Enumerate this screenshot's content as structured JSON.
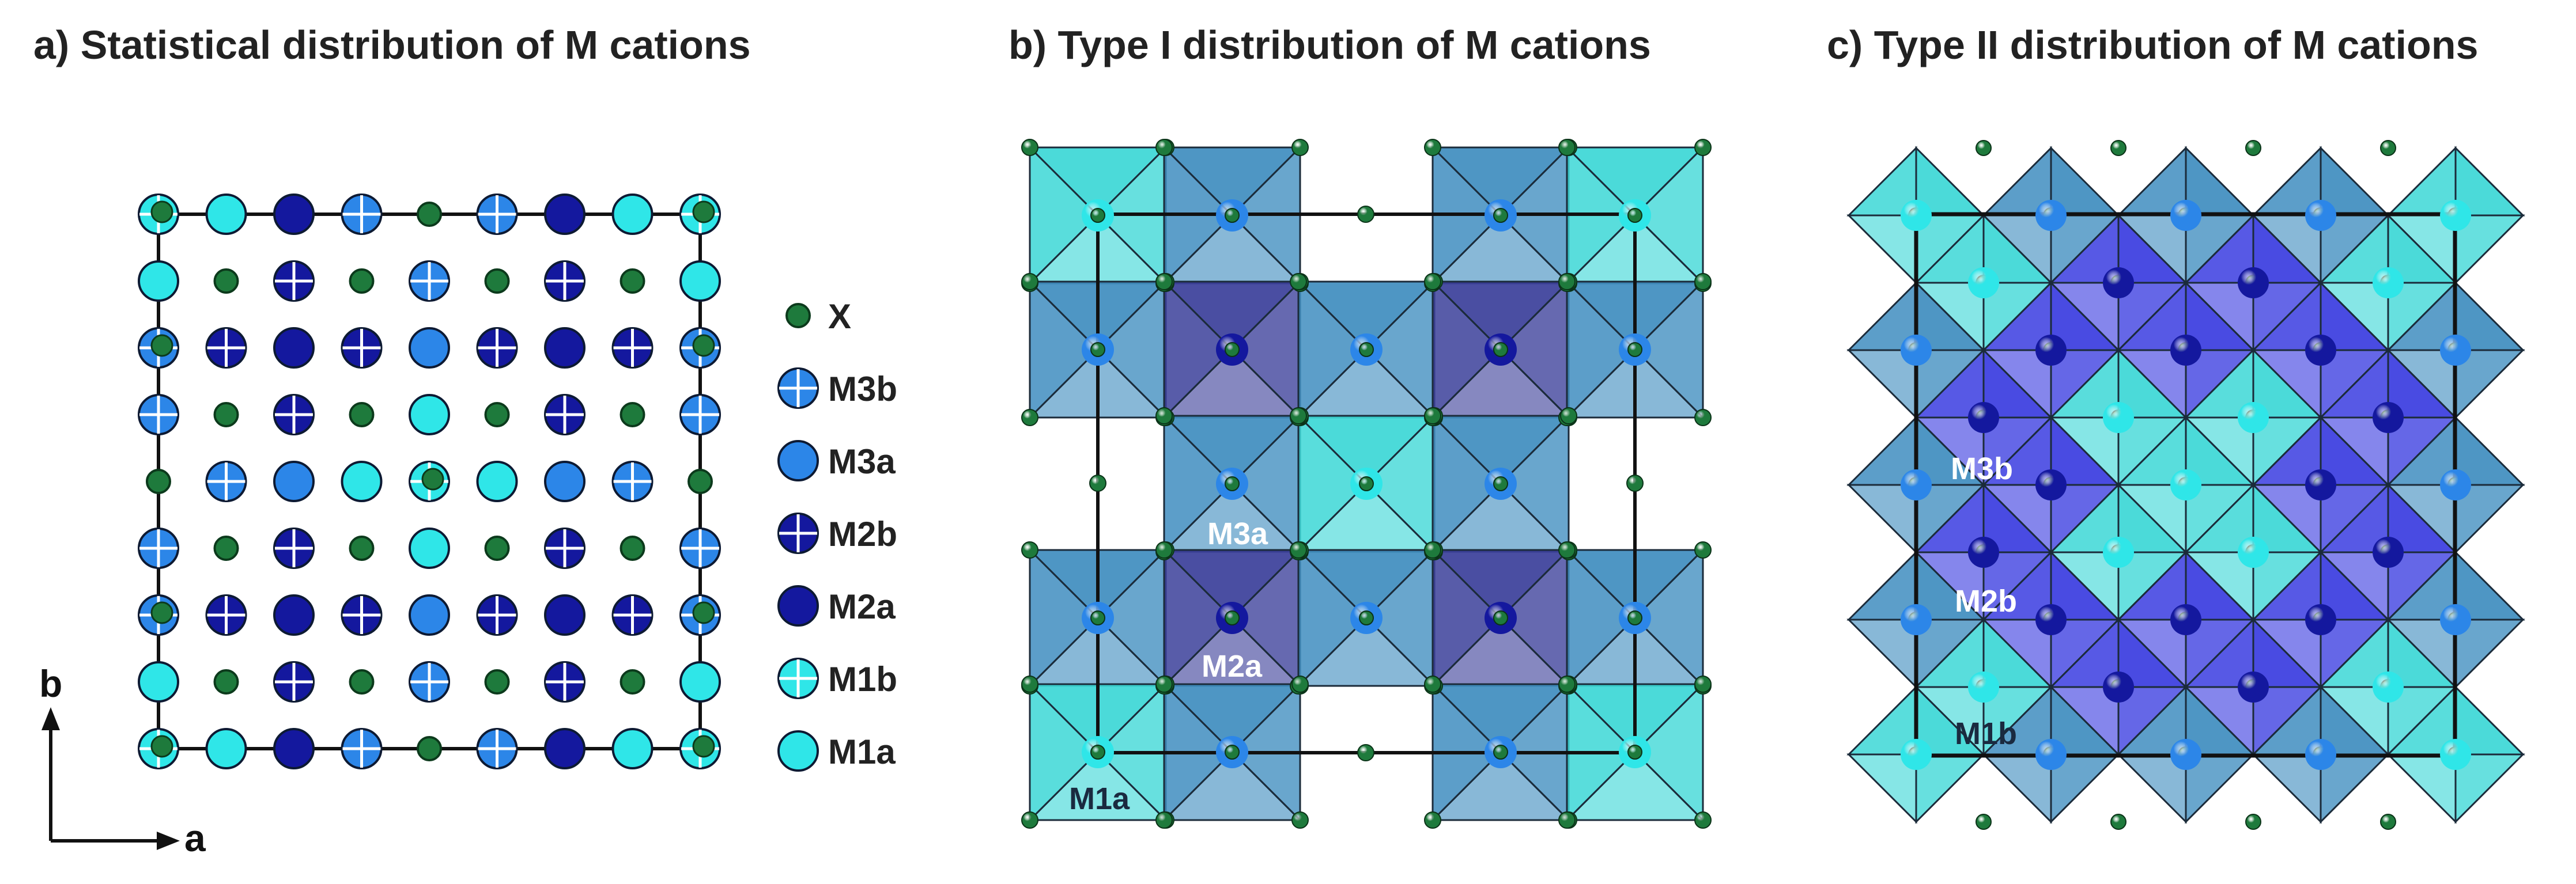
{
  "panels": {
    "a": {
      "title": "a)  Statistical distribution of M cations"
    },
    "b": {
      "title": "b)  Type I distribution of M cations"
    },
    "c": {
      "title": "c)  Type II distribution of M cations"
    }
  },
  "axes": {
    "a_label": "a",
    "b_label": "b"
  },
  "legend": [
    {
      "key": "X",
      "label": "X"
    },
    {
      "key": "M3b",
      "label": "M3b"
    },
    {
      "key": "M3a",
      "label": "M3a"
    },
    {
      "key": "M2b",
      "label": "M2b"
    },
    {
      "key": "M2a",
      "label": "M2a"
    },
    {
      "key": "M1b",
      "label": "M1b"
    },
    {
      "key": "M1a",
      "label": "M1a"
    }
  ],
  "site_labels_b": {
    "M3a": "M3a",
    "M2a": "M2a",
    "M1a": "M1a"
  },
  "site_labels_c": {
    "M3b": "M3b",
    "M2b": "M2b",
    "M1b": "M1b"
  },
  "colors": {
    "X": "#1e7a3c",
    "M3": "#2c86e8",
    "M2": "#14189e",
    "M1": "#2fe6e8",
    "poly_M3": "#3f8dbf",
    "poly_M2": "#3b3f9a",
    "poly_M1": "#3cd7d6",
    "poly_M2_c": "#3a3ce0"
  },
  "grid_a": [
    [
      "M1b",
      "M1a",
      "M2a",
      "M3b",
      "X",
      "M3b",
      "M2a",
      "M1a",
      "M1b"
    ],
    [
      "M1a",
      "X",
      "M2b",
      "X",
      "M3b",
      "X",
      "M2b",
      "X",
      "M1a"
    ],
    [
      "M3b",
      "M2b",
      "M2a",
      "M2b",
      "M3a",
      "M2b",
      "M2a",
      "M2b",
      "M3b"
    ],
    [
      "M3b",
      "X",
      "M2b",
      "X",
      "M1a",
      "X",
      "M2b",
      "X",
      "M3b"
    ],
    [
      "X",
      "M3b",
      "M3a",
      "M1a",
      "M1b",
      "M1a",
      "M3a",
      "M3b",
      "X"
    ],
    [
      "M3b",
      "X",
      "M2b",
      "X",
      "M1a",
      "X",
      "M2b",
      "X",
      "M3b"
    ],
    [
      "M3b",
      "M2b",
      "M2a",
      "M2b",
      "M3a",
      "M2b",
      "M2a",
      "M2b",
      "M3b"
    ],
    [
      "M1a",
      "X",
      "M2b",
      "X",
      "M3b",
      "X",
      "M2b",
      "X",
      "M1a"
    ],
    [
      "M1b",
      "M1a",
      "M2a",
      "M3b",
      "X",
      "M3b",
      "M2a",
      "M1a",
      "M1b"
    ]
  ],
  "octa_grid_b": [
    [
      "M1",
      "M3",
      null,
      "M3",
      "M1"
    ],
    [
      "M3",
      "M2",
      "M3",
      "M2",
      "M3"
    ],
    [
      null,
      "M3",
      "M1",
      "M3",
      null
    ],
    [
      "M3",
      "M2",
      "M3",
      "M2",
      "M3"
    ],
    [
      "M1",
      "M3",
      null,
      "M3",
      "M1"
    ]
  ],
  "octa_grid_c": [
    [
      "M1",
      "M3",
      "M3",
      "M3",
      "M1"
    ],
    [
      "M3",
      "M2",
      "M2",
      "M2",
      "M3"
    ],
    [
      "M3",
      "M2",
      "M1",
      "M2",
      "M3"
    ],
    [
      "M3",
      "M2",
      "M2",
      "M2",
      "M3"
    ],
    [
      "M1",
      "M3",
      "M3",
      "M3",
      "M1"
    ]
  ]
}
